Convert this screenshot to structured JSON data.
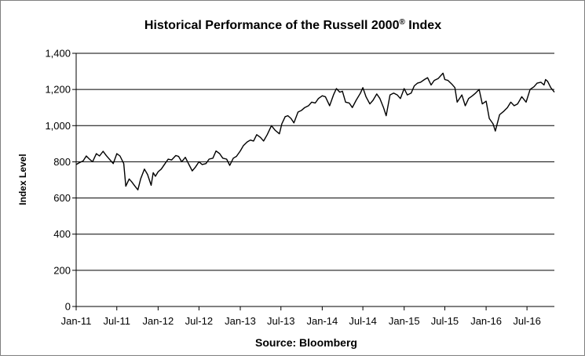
{
  "chart_data": {
    "type": "line",
    "title": "Historical Performance of the Russell 2000",
    "title_sup": "®",
    "title_suffix": " Index",
    "xlabel": "Source: Bloomberg",
    "ylabel": "Index Level",
    "ylim": [
      0,
      1400
    ],
    "yticks": [
      0,
      200,
      400,
      600,
      800,
      1000,
      1200,
      1400
    ],
    "ytick_labels": [
      "0",
      "200",
      "400",
      "600",
      "800",
      "1,000",
      "1,200",
      "1,400"
    ],
    "xlim": [
      "2011-01-01",
      "2016-10-31"
    ],
    "xticks": [
      "2011-01-01",
      "2011-07-01",
      "2012-01-01",
      "2012-07-01",
      "2013-01-01",
      "2013-07-01",
      "2014-01-01",
      "2014-07-01",
      "2015-01-01",
      "2015-07-01",
      "2016-01-01",
      "2016-07-01"
    ],
    "xtick_labels": [
      "Jan-11",
      "Jul-11",
      "Jan-12",
      "Jul-12",
      "Jan-13",
      "Jul-13",
      "Jan-14",
      "Jul-14",
      "Jan-15",
      "Jul-15",
      "Jan-16",
      "Jul-16"
    ],
    "grid": true,
    "legend": "none",
    "line_color": "#000000",
    "series": [
      {
        "points": [
          [
            "2011-01-01",
            785
          ],
          [
            "2011-01-15",
            795
          ],
          [
            "2011-02-01",
            805
          ],
          [
            "2011-02-15",
            832
          ],
          [
            "2011-03-01",
            815
          ],
          [
            "2011-03-15",
            800
          ],
          [
            "2011-04-01",
            845
          ],
          [
            "2011-04-15",
            832
          ],
          [
            "2011-05-01",
            858
          ],
          [
            "2011-05-15",
            835
          ],
          [
            "2011-06-01",
            810
          ],
          [
            "2011-06-15",
            790
          ],
          [
            "2011-07-01",
            845
          ],
          [
            "2011-07-15",
            832
          ],
          [
            "2011-08-01",
            790
          ],
          [
            "2011-08-10",
            665
          ],
          [
            "2011-08-25",
            705
          ],
          [
            "2011-09-05",
            690
          ],
          [
            "2011-09-20",
            665
          ],
          [
            "2011-10-03",
            645
          ],
          [
            "2011-10-15",
            705
          ],
          [
            "2011-11-01",
            760
          ],
          [
            "2011-11-15",
            730
          ],
          [
            "2011-12-01",
            670
          ],
          [
            "2011-12-10",
            740
          ],
          [
            "2011-12-20",
            720
          ],
          [
            "2012-01-01",
            745
          ],
          [
            "2012-01-15",
            760
          ],
          [
            "2012-02-01",
            790
          ],
          [
            "2012-02-15",
            815
          ],
          [
            "2012-03-01",
            810
          ],
          [
            "2012-03-20",
            835
          ],
          [
            "2012-04-01",
            830
          ],
          [
            "2012-04-15",
            800
          ],
          [
            "2012-05-01",
            825
          ],
          [
            "2012-05-15",
            790
          ],
          [
            "2012-06-01",
            750
          ],
          [
            "2012-06-15",
            770
          ],
          [
            "2012-07-01",
            800
          ],
          [
            "2012-07-15",
            785
          ],
          [
            "2012-08-01",
            790
          ],
          [
            "2012-08-15",
            815
          ],
          [
            "2012-09-01",
            820
          ],
          [
            "2012-09-15",
            860
          ],
          [
            "2012-10-01",
            845
          ],
          [
            "2012-10-15",
            820
          ],
          [
            "2012-11-01",
            815
          ],
          [
            "2012-11-15",
            780
          ],
          [
            "2012-12-01",
            820
          ],
          [
            "2012-12-15",
            830
          ],
          [
            "2013-01-01",
            860
          ],
          [
            "2013-01-15",
            890
          ],
          [
            "2013-02-01",
            910
          ],
          [
            "2013-02-15",
            920
          ],
          [
            "2013-03-01",
            915
          ],
          [
            "2013-03-15",
            950
          ],
          [
            "2013-04-01",
            935
          ],
          [
            "2013-04-15",
            915
          ],
          [
            "2013-05-01",
            950
          ],
          [
            "2013-05-20",
            1000
          ],
          [
            "2013-06-05",
            975
          ],
          [
            "2013-06-24",
            955
          ],
          [
            "2013-07-05",
            1010
          ],
          [
            "2013-07-20",
            1050
          ],
          [
            "2013-08-01",
            1055
          ],
          [
            "2013-08-15",
            1040
          ],
          [
            "2013-08-28",
            1015
          ],
          [
            "2013-09-15",
            1075
          ],
          [
            "2013-10-01",
            1085
          ],
          [
            "2013-10-15",
            1100
          ],
          [
            "2013-11-01",
            1110
          ],
          [
            "2013-11-15",
            1130
          ],
          [
            "2013-12-01",
            1125
          ],
          [
            "2013-12-15",
            1150
          ],
          [
            "2014-01-01",
            1165
          ],
          [
            "2014-01-15",
            1160
          ],
          [
            "2014-02-03",
            1110
          ],
          [
            "2014-02-20",
            1170
          ],
          [
            "2014-03-05",
            1205
          ],
          [
            "2014-03-20",
            1185
          ],
          [
            "2014-04-01",
            1190
          ],
          [
            "2014-04-15",
            1130
          ],
          [
            "2014-05-01",
            1125
          ],
          [
            "2014-05-15",
            1100
          ],
          [
            "2014-06-01",
            1140
          ],
          [
            "2014-06-20",
            1180
          ],
          [
            "2014-07-01",
            1210
          ],
          [
            "2014-07-15",
            1160
          ],
          [
            "2014-08-01",
            1120
          ],
          [
            "2014-08-15",
            1140
          ],
          [
            "2014-09-01",
            1175
          ],
          [
            "2014-09-15",
            1150
          ],
          [
            "2014-10-01",
            1100
          ],
          [
            "2014-10-13",
            1055
          ],
          [
            "2014-10-30",
            1170
          ],
          [
            "2014-11-15",
            1180
          ],
          [
            "2014-12-01",
            1170
          ],
          [
            "2014-12-15",
            1150
          ],
          [
            "2015-01-01",
            1205
          ],
          [
            "2015-01-15",
            1170
          ],
          [
            "2015-02-01",
            1180
          ],
          [
            "2015-02-15",
            1220
          ],
          [
            "2015-03-01",
            1235
          ],
          [
            "2015-03-15",
            1240
          ],
          [
            "2015-04-01",
            1255
          ],
          [
            "2015-04-15",
            1265
          ],
          [
            "2015-05-01",
            1225
          ],
          [
            "2015-05-15",
            1250
          ],
          [
            "2015-06-01",
            1260
          ],
          [
            "2015-06-23",
            1290
          ],
          [
            "2015-07-01",
            1255
          ],
          [
            "2015-07-15",
            1250
          ],
          [
            "2015-08-01",
            1230
          ],
          [
            "2015-08-15",
            1210
          ],
          [
            "2015-08-25",
            1130
          ],
          [
            "2015-09-15",
            1170
          ],
          [
            "2015-09-30",
            1110
          ],
          [
            "2015-10-15",
            1150
          ],
          [
            "2015-11-01",
            1165
          ],
          [
            "2015-11-15",
            1180
          ],
          [
            "2015-12-01",
            1200
          ],
          [
            "2015-12-15",
            1120
          ],
          [
            "2016-01-01",
            1135
          ],
          [
            "2016-01-15",
            1040
          ],
          [
            "2016-02-01",
            1010
          ],
          [
            "2016-02-11",
            970
          ],
          [
            "2016-03-01",
            1060
          ],
          [
            "2016-03-20",
            1080
          ],
          [
            "2016-04-05",
            1100
          ],
          [
            "2016-04-20",
            1130
          ],
          [
            "2016-05-05",
            1110
          ],
          [
            "2016-05-20",
            1120
          ],
          [
            "2016-06-08",
            1160
          ],
          [
            "2016-06-27",
            1130
          ],
          [
            "2016-07-15",
            1200
          ],
          [
            "2016-08-01",
            1215
          ],
          [
            "2016-08-15",
            1235
          ],
          [
            "2016-09-01",
            1240
          ],
          [
            "2016-09-15",
            1225
          ],
          [
            "2016-09-22",
            1255
          ],
          [
            "2016-10-01",
            1245
          ],
          [
            "2016-10-15",
            1210
          ],
          [
            "2016-10-31",
            1185
          ]
        ]
      }
    ]
  }
}
